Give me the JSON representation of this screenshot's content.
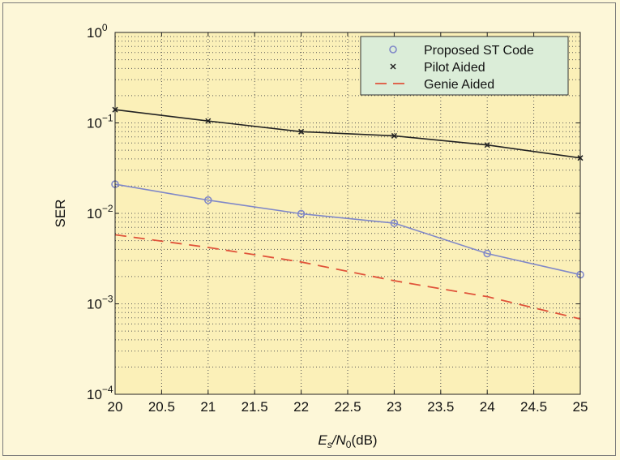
{
  "chart_data": {
    "type": "line",
    "xlabel": {
      "main": "E",
      "sub_s": "s",
      "slash": "/N",
      "sub_0": "0",
      "unit": "(dB)"
    },
    "ylabel": "SER",
    "xlim": [
      20,
      25
    ],
    "ylim": [
      0.0001,
      1
    ],
    "yscale": "log",
    "grid": true,
    "legend_position": "top-right",
    "x_ticks": [
      20,
      20.5,
      21,
      21.5,
      22,
      22.5,
      23,
      23.5,
      24,
      24.5,
      25
    ],
    "x_tick_labels": [
      "20",
      "20.5",
      "21",
      "21.5",
      "22",
      "22.5",
      "23",
      "23.5",
      "24",
      "24.5",
      "25"
    ],
    "y_ticks": [
      {
        "base": "10",
        "exp": "0"
      },
      {
        "base": "10",
        "exp": "−1"
      },
      {
        "base": "10",
        "exp": "−2"
      },
      {
        "base": "10",
        "exp": "−3"
      },
      {
        "base": "10",
        "exp": "−4"
      }
    ],
    "series": [
      {
        "name": "Proposed ST Code",
        "marker": "circle",
        "line": "solid",
        "color": "#8088c8",
        "x": [
          20,
          21,
          22,
          23,
          24,
          25
        ],
        "y": [
          0.021,
          0.014,
          0.0099,
          0.0078,
          0.0036,
          0.0021
        ]
      },
      {
        "name": "Pilot Aided",
        "marker": "x",
        "line": "solid",
        "color": "#222222",
        "x": [
          20,
          21,
          22,
          23,
          24,
          25
        ],
        "y": [
          0.14,
          0.105,
          0.08,
          0.072,
          0.057,
          0.041
        ]
      },
      {
        "name": "Genie Aided",
        "marker": "none",
        "line": "dashed",
        "color": "#e0533a",
        "x": [
          20,
          21,
          22,
          23,
          24,
          25
        ],
        "y": [
          0.0058,
          0.0042,
          0.0029,
          0.0018,
          0.0012,
          0.00068
        ]
      }
    ]
  },
  "colors": {
    "page_background": "#fdf7d8",
    "plot_background": "#fbf0b8",
    "legend_background": "#dbedd8",
    "grid": "#555555"
  }
}
